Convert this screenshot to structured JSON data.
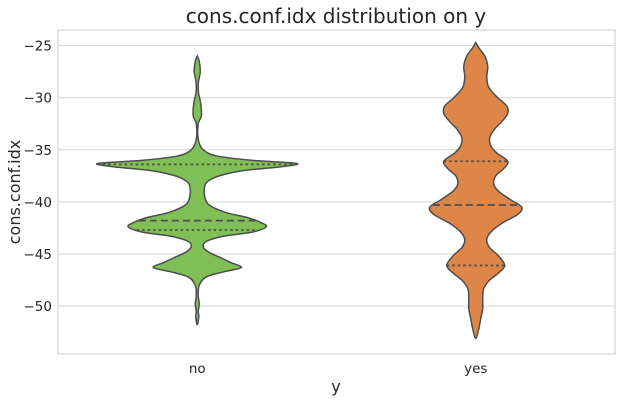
{
  "chart_data": {
    "type": "violin",
    "title": "cons.conf.idx distribution on y",
    "xlabel": "y",
    "ylabel": "cons.conf.idx",
    "categories": [
      "no",
      "yes"
    ],
    "ylim": [
      -54.6,
      -23.5
    ],
    "yticks": [
      -25,
      -30,
      -35,
      -40,
      -45,
      -50
    ],
    "ytick_labels": [
      "−25",
      "−30",
      "−35",
      "−40",
      "−45",
      "−50"
    ],
    "grid": true,
    "violins": [
      {
        "category": "no",
        "color": "#7fbf56",
        "quartiles": {
          "q1": -42.7,
          "median": -41.8,
          "q3": -36.4
        },
        "profile": [
          [
            -26.0,
            0.0
          ],
          [
            -26.5,
            0.02
          ],
          [
            -27.5,
            0.03
          ],
          [
            -28.5,
            0.012
          ],
          [
            -29.5,
            0.012
          ],
          [
            -30.3,
            0.03
          ],
          [
            -31.0,
            0.04
          ],
          [
            -31.8,
            0.04
          ],
          [
            -32.5,
            0.01
          ],
          [
            -34.0,
            0.01
          ],
          [
            -35.0,
            0.06
          ],
          [
            -35.6,
            0.2
          ],
          [
            -36.0,
            0.54
          ],
          [
            -36.3,
            0.99
          ],
          [
            -36.6,
            0.86
          ],
          [
            -37.0,
            0.46
          ],
          [
            -37.5,
            0.22
          ],
          [
            -38.0,
            0.11
          ],
          [
            -38.5,
            0.075
          ],
          [
            -39.5,
            0.075
          ],
          [
            -40.3,
            0.12
          ],
          [
            -41.0,
            0.28
          ],
          [
            -41.5,
            0.5
          ],
          [
            -42.0,
            0.64
          ],
          [
            -42.4,
            0.69
          ],
          [
            -42.9,
            0.55
          ],
          [
            -43.3,
            0.26
          ],
          [
            -43.8,
            0.09
          ],
          [
            -44.3,
            0.06
          ],
          [
            -44.8,
            0.11
          ],
          [
            -45.3,
            0.22
          ],
          [
            -45.8,
            0.33
          ],
          [
            -46.3,
            0.44
          ],
          [
            -46.7,
            0.27
          ],
          [
            -47.2,
            0.09
          ],
          [
            -48.0,
            0.02
          ],
          [
            -49.0,
            0.01
          ],
          [
            -49.8,
            0.02
          ],
          [
            -50.5,
            0.01
          ],
          [
            -51.0,
            0.015
          ],
          [
            -51.8,
            0.0
          ]
        ]
      },
      {
        "category": "yes",
        "color": "#dd8647",
        "quartiles": {
          "q1": -46.1,
          "median": -40.3,
          "q3": -36.1
        },
        "profile": [
          [
            -24.7,
            0.0
          ],
          [
            -25.2,
            0.03
          ],
          [
            -26.0,
            0.09
          ],
          [
            -27.0,
            0.12
          ],
          [
            -28.0,
            0.11
          ],
          [
            -29.0,
            0.13
          ],
          [
            -30.0,
            0.22
          ],
          [
            -30.8,
            0.31
          ],
          [
            -31.5,
            0.32
          ],
          [
            -32.3,
            0.26
          ],
          [
            -33.0,
            0.19
          ],
          [
            -33.8,
            0.14
          ],
          [
            -34.6,
            0.15
          ],
          [
            -35.3,
            0.21
          ],
          [
            -36.1,
            0.32
          ],
          [
            -36.8,
            0.28
          ],
          [
            -37.5,
            0.2
          ],
          [
            -38.3,
            0.18
          ],
          [
            -39.0,
            0.23
          ],
          [
            -39.8,
            0.35
          ],
          [
            -40.5,
            0.46
          ],
          [
            -41.2,
            0.42
          ],
          [
            -42.0,
            0.27
          ],
          [
            -42.8,
            0.16
          ],
          [
            -43.6,
            0.11
          ],
          [
            -44.4,
            0.14
          ],
          [
            -45.2,
            0.23
          ],
          [
            -46.1,
            0.29
          ],
          [
            -46.8,
            0.23
          ],
          [
            -47.5,
            0.14
          ],
          [
            -48.3,
            0.08
          ],
          [
            -49.2,
            0.07
          ],
          [
            -50.2,
            0.07
          ],
          [
            -51.2,
            0.05
          ],
          [
            -52.2,
            0.03
          ],
          [
            -53.1,
            0.0
          ]
        ]
      }
    ]
  }
}
